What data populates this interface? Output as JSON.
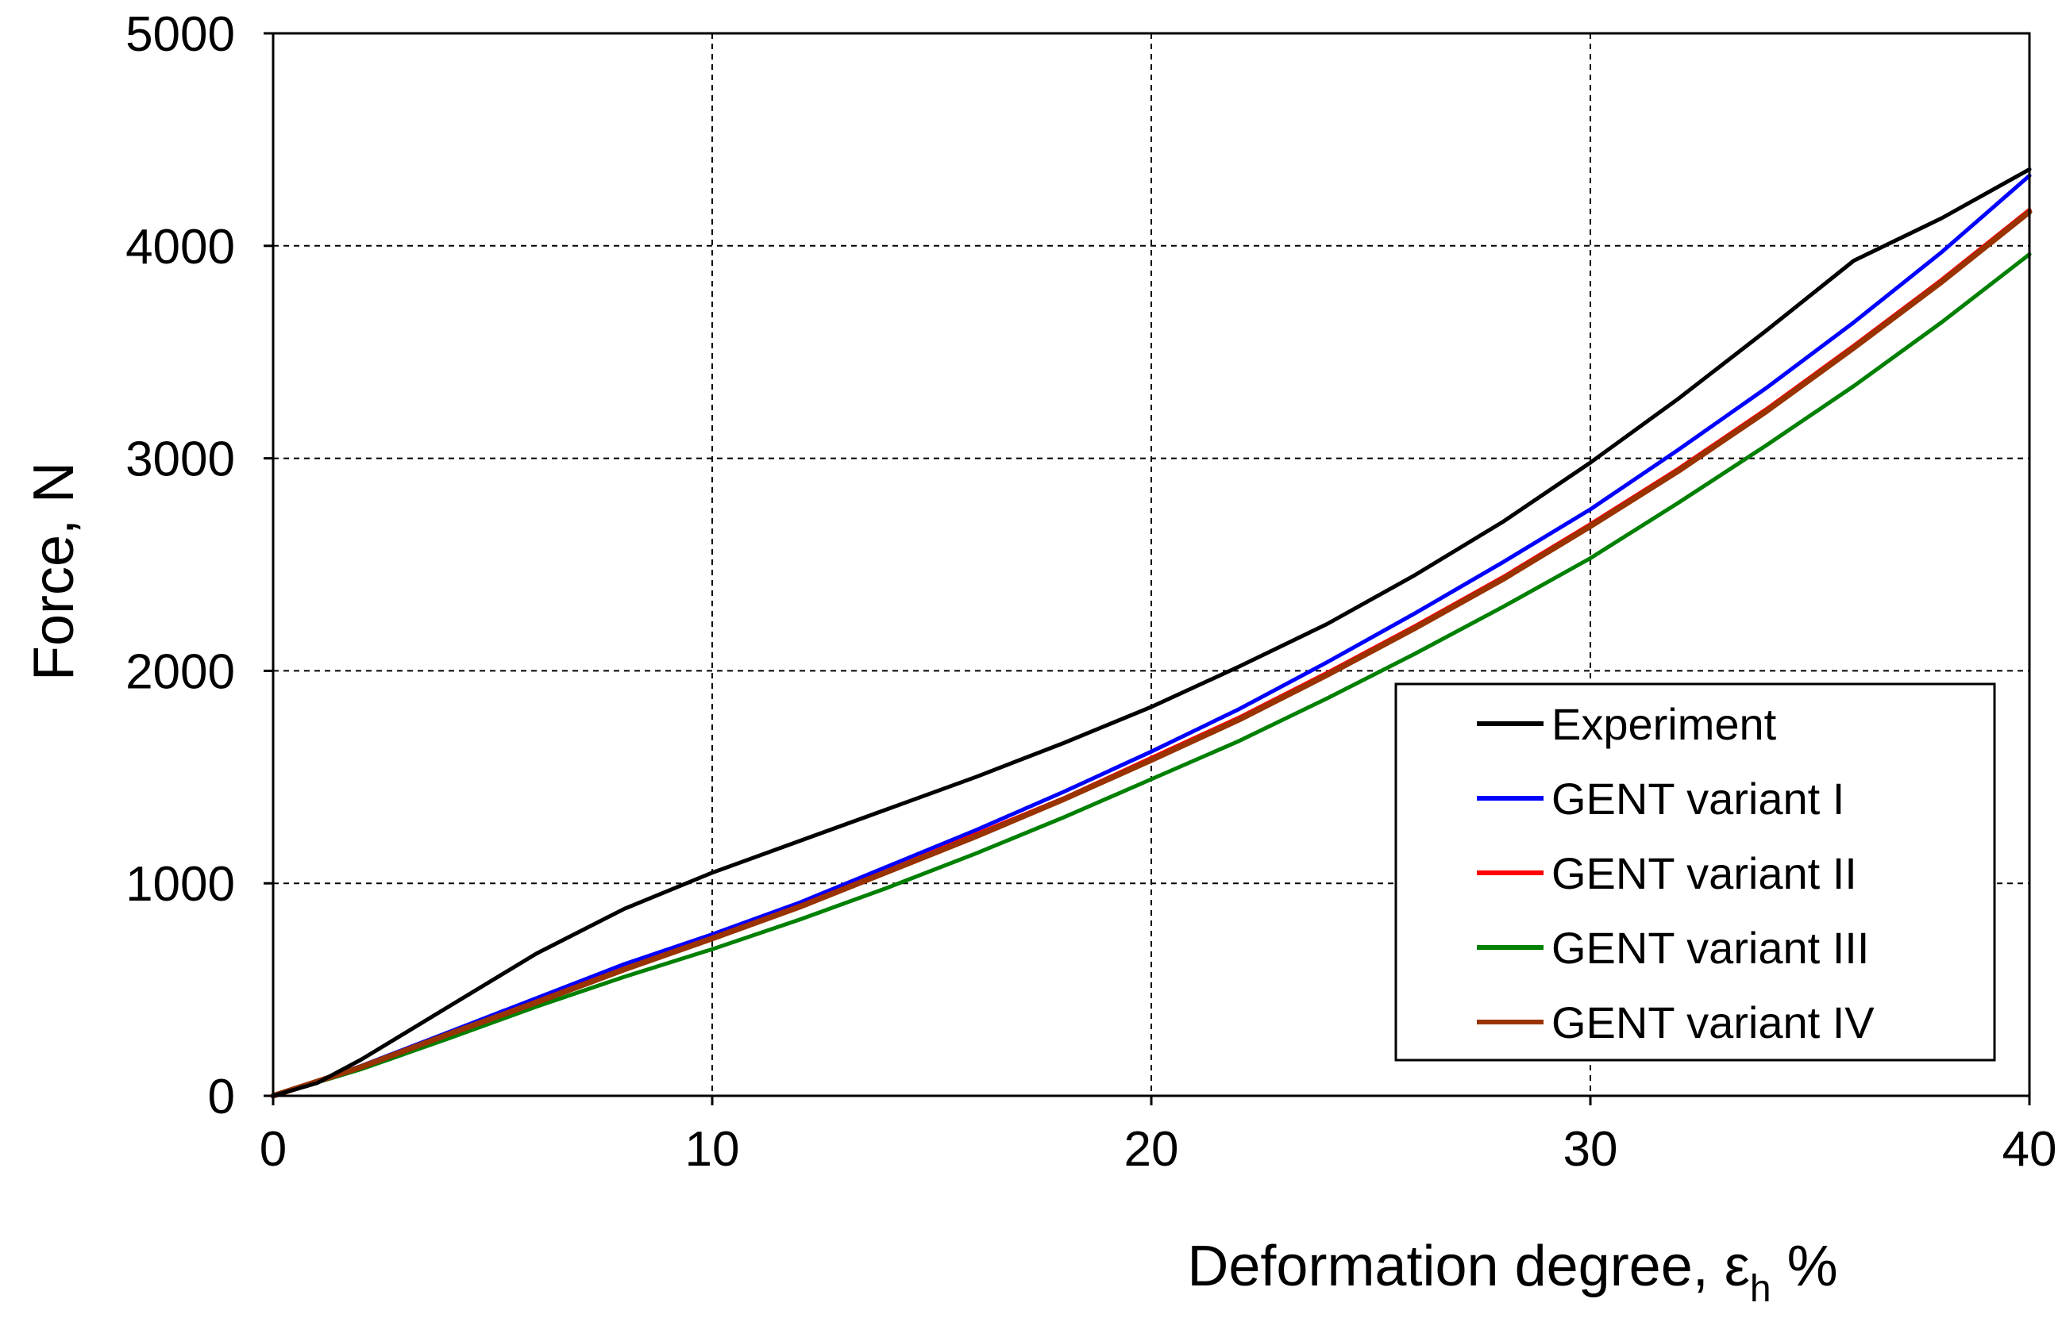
{
  "chart_data": {
    "type": "line",
    "xlabel": "Deformation degree, ε",
    "xlabel_sub": "h",
    "xlabel_suffix": " %",
    "ylabel": "Force, N",
    "xlim": [
      0,
      40
    ],
    "ylim": [
      0,
      5000
    ],
    "xticks": [
      0,
      10,
      20,
      30,
      40
    ],
    "yticks": [
      0,
      1000,
      2000,
      3000,
      4000,
      5000
    ],
    "xtick_labels": [
      "0",
      "10",
      "20",
      "30",
      "40"
    ],
    "ytick_labels": [
      "0",
      "1000",
      "2000",
      "3000",
      "4000",
      "5000"
    ],
    "grid": true,
    "legend_position": "lower-right",
    "series": [
      {
        "name": "Experiment",
        "color": "#000000",
        "x": [
          0,
          1,
          2,
          4,
          6,
          8,
          10,
          12,
          14,
          16,
          18,
          20,
          22,
          24,
          26,
          28,
          30,
          32,
          34,
          36,
          38,
          40
        ],
        "y": [
          0,
          60,
          170,
          420,
          670,
          880,
          1050,
          1200,
          1350,
          1500,
          1660,
          1830,
          2020,
          2220,
          2450,
          2700,
          2980,
          3280,
          3600,
          3930,
          4130,
          4360
        ]
      },
      {
        "name": "GENT variant I",
        "color": "#0000ff",
        "x": [
          0,
          2,
          4,
          6,
          8,
          10,
          12,
          14,
          16,
          18,
          20,
          22,
          24,
          26,
          28,
          30,
          32,
          34,
          36,
          38,
          40
        ],
        "y": [
          0,
          140,
          300,
          460,
          620,
          760,
          910,
          1080,
          1250,
          1430,
          1620,
          1820,
          2040,
          2270,
          2510,
          2760,
          3040,
          3330,
          3640,
          3970,
          4330
        ]
      },
      {
        "name": "GENT variant II",
        "color": "#ff0000",
        "x": [
          0,
          2,
          4,
          6,
          8,
          10,
          12,
          14,
          16,
          18,
          20,
          22,
          24,
          26,
          28,
          30,
          32,
          34,
          36,
          38,
          40
        ],
        "y": [
          0,
          135,
          290,
          445,
          600,
          745,
          895,
          1060,
          1230,
          1400,
          1590,
          1780,
          1990,
          2210,
          2440,
          2690,
          2950,
          3230,
          3530,
          3840,
          4170
        ]
      },
      {
        "name": "GENT variant III",
        "color": "#008000",
        "x": [
          0,
          2,
          4,
          6,
          8,
          10,
          12,
          14,
          16,
          18,
          20,
          22,
          24,
          26,
          28,
          30,
          32,
          34,
          36,
          38,
          40
        ],
        "y": [
          0,
          125,
          270,
          420,
          560,
          690,
          830,
          980,
          1140,
          1310,
          1490,
          1670,
          1870,
          2080,
          2300,
          2530,
          2790,
          3060,
          3340,
          3640,
          3960
        ]
      },
      {
        "name": "GENT variant IV",
        "color": "#993300",
        "x": [
          0,
          2,
          4,
          6,
          8,
          10,
          12,
          14,
          16,
          18,
          20,
          22,
          24,
          26,
          28,
          30,
          32,
          34,
          36,
          38,
          40
        ],
        "y": [
          0,
          135,
          290,
          440,
          595,
          740,
          890,
          1055,
          1220,
          1395,
          1580,
          1770,
          1980,
          2200,
          2430,
          2680,
          2940,
          3220,
          3520,
          3830,
          4160
        ]
      }
    ]
  }
}
